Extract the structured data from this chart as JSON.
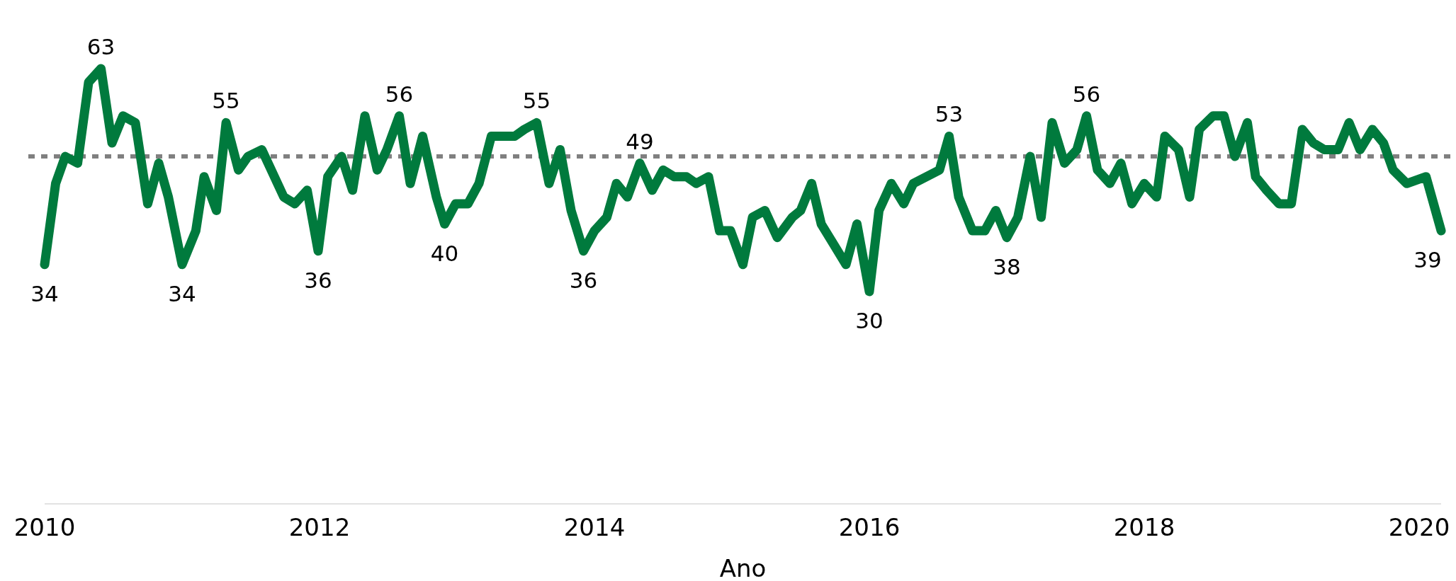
{
  "chart_data": {
    "type": "line",
    "xlabel": "Ano",
    "xlim": [
      2010,
      2020.16
    ],
    "xticks": [
      2010,
      2012,
      2014,
      2016,
      2018,
      2020
    ],
    "grid": false,
    "ref_lines": [
      {
        "axis": "y",
        "value": 50,
        "color": "#808080",
        "line_style": "dotted"
      }
    ],
    "series": [
      {
        "color": "#007a3d",
        "line_style": "solid",
        "x": [
          2010.0,
          2010.08,
          2010.15,
          2010.24,
          2010.32,
          2010.41,
          2010.49,
          2010.57,
          2010.66,
          2010.75,
          2010.83,
          2010.9,
          2011.0,
          2011.1,
          2011.16,
          2011.25,
          2011.32,
          2011.41,
          2011.48,
          2011.58,
          2011.74,
          2011.82,
          2011.91,
          2011.99,
          2012.06,
          2012.16,
          2012.24,
          2012.33,
          2012.42,
          2012.49,
          2012.58,
          2012.66,
          2012.75,
          2012.85,
          2012.91,
          2012.99,
          2013.08,
          2013.16,
          2013.25,
          2013.33,
          2013.42,
          2013.49,
          2013.58,
          2013.67,
          2013.75,
          2013.83,
          2013.92,
          2014.0,
          2014.09,
          2014.16,
          2014.24,
          2014.33,
          2014.42,
          2014.5,
          2014.58,
          2014.67,
          2014.74,
          2014.83,
          2014.91,
          2014.99,
          2015.08,
          2015.15,
          2015.24,
          2015.33,
          2015.44,
          2015.5,
          2015.58,
          2015.65,
          2015.74,
          2015.83,
          2015.91,
          2016.0,
          2016.07,
          2016.16,
          2016.25,
          2016.32,
          2016.51,
          2016.58,
          2016.65,
          2016.75,
          2016.84,
          2016.92,
          2017.0,
          2017.08,
          2017.17,
          2017.25,
          2017.33,
          2017.42,
          2017.51,
          2017.58,
          2017.66,
          2017.75,
          2017.83,
          2017.91,
          2018.0,
          2018.09,
          2018.15,
          2018.25,
          2018.33,
          2018.4,
          2018.5,
          2018.58,
          2018.66,
          2018.75,
          2018.81,
          2018.89,
          2018.98,
          2019.07,
          2019.15,
          2019.23,
          2019.31,
          2019.41,
          2019.49,
          2019.57,
          2019.66,
          2019.74,
          2019.81,
          2019.91,
          2020.05,
          2020.16
        ],
        "values": [
          34,
          46,
          50,
          49,
          61,
          63,
          52,
          56,
          55,
          43,
          49,
          44,
          34,
          39,
          47,
          42,
          55,
          48,
          50,
          51,
          44,
          43,
          45,
          36,
          47,
          50,
          45,
          56,
          48,
          51,
          56,
          46,
          53,
          44,
          40,
          43,
          43,
          46,
          53,
          53,
          53,
          54,
          55,
          46,
          51,
          42,
          36,
          39,
          41,
          46,
          44,
          49,
          45,
          48,
          47,
          47,
          46,
          47,
          39,
          39,
          34,
          41,
          42,
          38,
          41,
          42,
          46,
          40,
          37,
          34,
          40,
          30,
          42,
          46,
          43,
          46,
          48,
          53,
          44,
          39,
          39,
          42,
          38,
          41,
          50,
          41,
          55,
          49,
          51,
          56,
          48,
          46,
          49,
          43,
          46,
          44,
          53,
          51,
          44,
          54,
          56,
          56,
          50,
          55,
          47,
          45,
          43,
          43,
          54,
          52,
          51,
          51,
          55,
          51,
          54,
          52,
          48,
          46,
          47,
          39
        ],
        "value_labels": [
          "34",
          null,
          null,
          null,
          null,
          "63",
          null,
          null,
          null,
          null,
          null,
          null,
          "34",
          null,
          null,
          null,
          "55",
          null,
          null,
          null,
          null,
          null,
          null,
          "36",
          null,
          null,
          null,
          null,
          null,
          null,
          "56",
          null,
          null,
          null,
          "40",
          null,
          null,
          null,
          null,
          null,
          null,
          null,
          "55",
          null,
          null,
          null,
          "36",
          null,
          null,
          null,
          null,
          "49",
          null,
          null,
          null,
          null,
          null,
          null,
          null,
          null,
          null,
          null,
          null,
          null,
          null,
          null,
          null,
          null,
          null,
          null,
          null,
          "30",
          null,
          null,
          null,
          null,
          null,
          "53",
          null,
          null,
          null,
          null,
          "38",
          null,
          null,
          null,
          null,
          null,
          null,
          "56",
          null,
          null,
          null,
          null,
          null,
          null,
          null,
          null,
          null,
          null,
          null,
          null,
          null,
          null,
          null,
          null,
          null,
          null,
          null,
          null,
          null,
          null,
          null,
          null,
          null,
          null,
          null,
          null,
          null,
          "39"
        ]
      }
    ]
  }
}
